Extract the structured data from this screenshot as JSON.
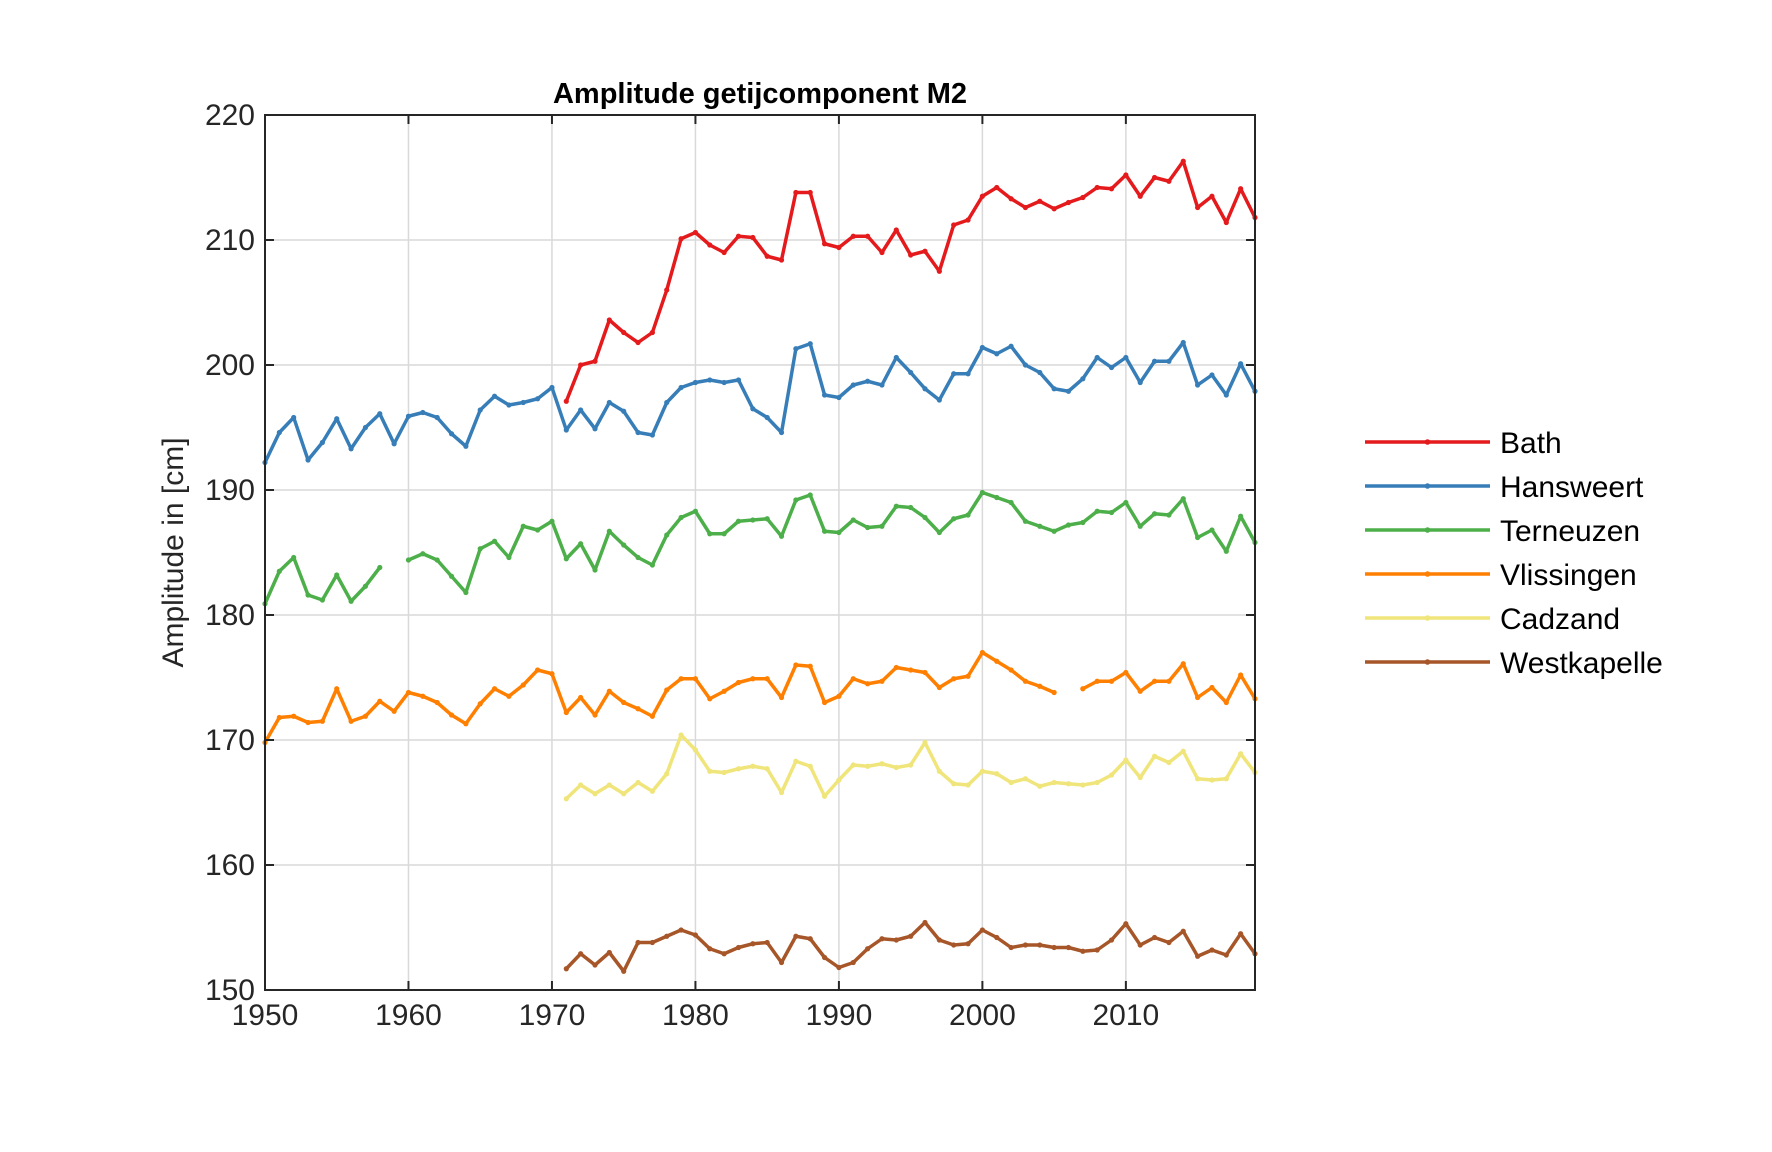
{
  "chart_data": {
    "type": "line",
    "title": "Amplitude getijcomponent M2",
    "xlabel": "",
    "ylabel": "Amplitude in [cm]",
    "xlim": [
      1950,
      2019
    ],
    "ylim": [
      150,
      220
    ],
    "xticks": [
      1950,
      1960,
      1970,
      1980,
      1990,
      2000,
      2010
    ],
    "yticks": [
      150,
      160,
      170,
      180,
      190,
      200,
      210,
      220
    ],
    "grid": true,
    "legend_position": "right, outside",
    "x": [
      1950,
      1951,
      1952,
      1953,
      1954,
      1955,
      1956,
      1957,
      1958,
      1959,
      1960,
      1961,
      1962,
      1963,
      1964,
      1965,
      1966,
      1967,
      1968,
      1969,
      1970,
      1971,
      1972,
      1973,
      1974,
      1975,
      1976,
      1977,
      1978,
      1979,
      1980,
      1981,
      1982,
      1983,
      1984,
      1985,
      1986,
      1987,
      1988,
      1989,
      1990,
      1991,
      1992,
      1993,
      1994,
      1995,
      1996,
      1997,
      1998,
      1999,
      2000,
      2001,
      2002,
      2003,
      2004,
      2005,
      2006,
      2007,
      2008,
      2009,
      2010,
      2011,
      2012,
      2013,
      2014,
      2015,
      2016,
      2017,
      2018,
      2019
    ],
    "series": [
      {
        "name": "Bath",
        "color": "#e41a1c",
        "values": [
          null,
          null,
          null,
          null,
          null,
          null,
          null,
          null,
          null,
          null,
          null,
          null,
          null,
          null,
          null,
          null,
          null,
          null,
          null,
          null,
          null,
          197.1,
          200.0,
          200.3,
          203.6,
          202.6,
          201.8,
          202.6,
          206.0,
          210.1,
          210.6,
          209.6,
          209.0,
          210.3,
          210.2,
          208.7,
          208.4,
          213.8,
          213.8,
          209.7,
          209.4,
          210.3,
          210.3,
          209.0,
          210.8,
          208.8,
          209.1,
          207.5,
          211.2,
          211.6,
          213.5,
          214.2,
          213.3,
          212.6,
          213.1,
          212.5,
          213.0,
          213.4,
          214.2,
          214.1,
          215.2,
          213.5,
          215.0,
          214.7,
          216.3,
          212.6,
          213.5,
          211.4,
          214.1,
          211.8
        ]
      },
      {
        "name": "Hansweert",
        "color": "#377eb8",
        "values": [
          192.2,
          194.6,
          195.8,
          192.4,
          193.8,
          195.7,
          193.3,
          195.0,
          196.1,
          193.7,
          195.9,
          196.2,
          195.8,
          194.5,
          193.5,
          196.4,
          197.5,
          196.8,
          197.0,
          197.3,
          198.2,
          194.8,
          196.4,
          194.9,
          197.0,
          196.3,
          194.6,
          194.4,
          197.0,
          198.2,
          198.6,
          198.8,
          198.6,
          198.8,
          196.5,
          195.8,
          194.6,
          201.3,
          201.7,
          197.6,
          197.4,
          198.4,
          198.7,
          198.4,
          200.6,
          199.4,
          198.1,
          197.2,
          199.3,
          199.3,
          201.4,
          200.9,
          201.5,
          200.0,
          199.4,
          198.1,
          197.9,
          198.9,
          200.6,
          199.8,
          200.6,
          198.6,
          200.3,
          200.3,
          201.8,
          198.4,
          199.2,
          197.6,
          200.1,
          197.9
        ]
      },
      {
        "name": "Terneuzen",
        "color": "#4daf4a",
        "values": [
          180.9,
          183.5,
          184.6,
          181.6,
          181.2,
          183.2,
          181.1,
          182.3,
          183.8,
          null,
          184.4,
          184.9,
          184.4,
          183.1,
          181.8,
          185.3,
          185.9,
          184.6,
          187.1,
          186.8,
          187.5,
          184.5,
          185.7,
          183.6,
          186.7,
          185.6,
          184.6,
          184.0,
          186.4,
          187.8,
          188.3,
          186.5,
          186.5,
          187.5,
          187.6,
          187.7,
          186.3,
          189.2,
          189.6,
          186.7,
          186.6,
          187.6,
          187.0,
          187.1,
          188.7,
          188.6,
          187.8,
          186.6,
          187.7,
          188.0,
          189.8,
          189.4,
          189.0,
          187.5,
          187.1,
          186.7,
          187.2,
          187.4,
          188.3,
          188.2,
          189.0,
          187.1,
          188.1,
          188.0,
          189.3,
          186.2,
          186.8,
          185.1,
          187.9,
          185.8
        ]
      },
      {
        "name": "Vlissingen",
        "color": "#ff7f00",
        "values": [
          169.8,
          171.8,
          171.9,
          171.4,
          171.5,
          174.1,
          171.5,
          171.9,
          173.1,
          172.3,
          173.8,
          173.5,
          173.0,
          172.0,
          171.3,
          172.9,
          174.1,
          173.5,
          174.4,
          175.6,
          175.3,
          172.2,
          173.4,
          172.0,
          173.9,
          173.0,
          172.5,
          171.9,
          174.0,
          174.9,
          174.9,
          173.3,
          173.9,
          174.6,
          174.9,
          174.9,
          173.4,
          176.0,
          175.9,
          173.0,
          173.5,
          174.9,
          174.5,
          174.7,
          175.8,
          175.6,
          175.4,
          174.2,
          174.9,
          175.1,
          177.0,
          176.3,
          175.6,
          174.7,
          174.3,
          173.8,
          null,
          174.1,
          174.7,
          174.7,
          175.4,
          173.9,
          174.7,
          174.7,
          176.1,
          173.4,
          174.2,
          173.0,
          175.2,
          173.3
        ]
      },
      {
        "name": "Cadzand",
        "color": "#f0e57a",
        "values": [
          null,
          null,
          null,
          null,
          null,
          null,
          null,
          null,
          null,
          null,
          null,
          null,
          null,
          null,
          null,
          null,
          null,
          null,
          null,
          null,
          null,
          165.3,
          166.4,
          165.7,
          166.4,
          165.7,
          166.6,
          165.9,
          167.3,
          170.4,
          169.2,
          167.5,
          167.4,
          167.7,
          167.9,
          167.7,
          165.8,
          168.3,
          167.9,
          165.5,
          166.8,
          168.0,
          167.9,
          168.1,
          167.8,
          168.0,
          169.8,
          167.5,
          166.5,
          166.4,
          167.5,
          167.3,
          166.6,
          166.9,
          166.3,
          166.6,
          166.5,
          166.4,
          166.6,
          167.2,
          168.4,
          167.0,
          168.7,
          168.2,
          169.1,
          166.9,
          166.8,
          166.9,
          168.9,
          167.4
        ]
      },
      {
        "name": "Westkapelle",
        "color": "#a65628",
        "values": [
          null,
          null,
          null,
          null,
          null,
          null,
          null,
          null,
          null,
          null,
          null,
          null,
          null,
          null,
          null,
          null,
          null,
          null,
          null,
          null,
          null,
          151.7,
          152.9,
          152.0,
          153.0,
          151.5,
          153.8,
          153.8,
          154.3,
          154.8,
          154.4,
          153.3,
          152.9,
          153.4,
          153.7,
          153.8,
          152.2,
          154.3,
          154.1,
          152.6,
          151.8,
          152.2,
          153.3,
          154.1,
          154.0,
          154.3,
          155.4,
          154.0,
          153.6,
          153.7,
          154.8,
          154.2,
          153.4,
          153.6,
          153.6,
          153.4,
          153.4,
          153.1,
          153.2,
          154.0,
          155.3,
          153.6,
          154.2,
          153.8,
          154.7,
          152.7,
          153.2,
          152.8,
          154.5,
          152.9
        ]
      }
    ]
  }
}
